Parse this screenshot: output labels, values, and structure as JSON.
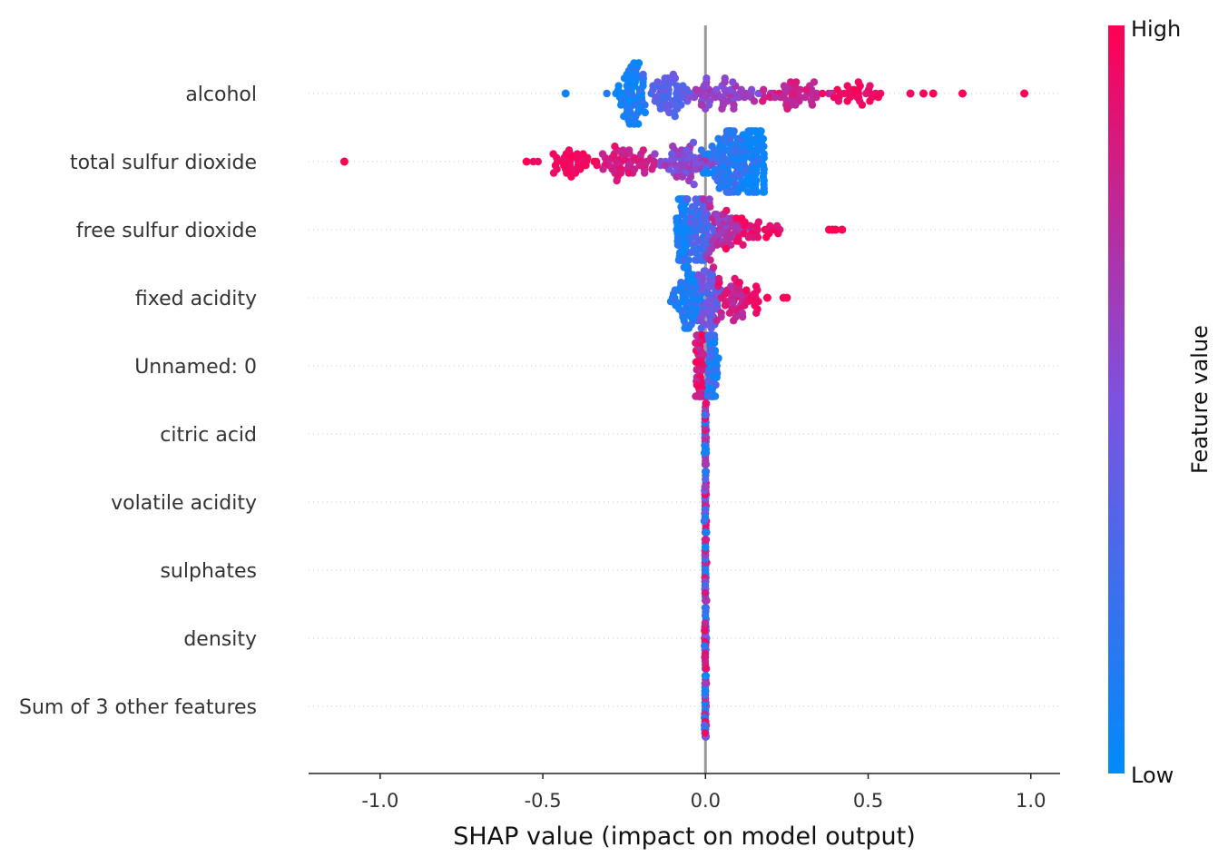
{
  "chart_data": {
    "type": "scatter",
    "subtype": "shap-beeswarm-summary",
    "xlabel": "SHAP value (impact on model output)",
    "xlim": [
      -1.22,
      1.09
    ],
    "x_ticks": [
      -1.0,
      -0.5,
      0.0,
      0.5,
      1.0
    ],
    "x_tick_labels": [
      "-1.0",
      "-0.5",
      "0.0",
      "0.5",
      "1.0"
    ],
    "colorbar": {
      "label": "Feature value",
      "high_label": "High",
      "low_label": "Low",
      "low_color": "#008bfb",
      "high_color": "#ff0052"
    },
    "features": [
      {
        "name": "alcohol",
        "min": -0.31,
        "max": 0.98,
        "spread": 0.17,
        "outliers": [
          {
            "x": -0.43,
            "v": 0.05
          },
          {
            "x": 0.63,
            "v": 0.95
          },
          {
            "x": 0.67,
            "v": 0.97
          },
          {
            "x": 0.7,
            "v": 0.98
          },
          {
            "x": 0.79,
            "v": 1.0
          },
          {
            "x": 0.98,
            "v": 1.0
          }
        ],
        "clusters": [
          {
            "center": -0.23,
            "sd": 0.04,
            "n": 70,
            "vmin": 0.0,
            "vmax": 0.2
          },
          {
            "center": -0.11,
            "sd": 0.05,
            "n": 55,
            "vmin": 0.25,
            "vmax": 0.45
          },
          {
            "center": 0.06,
            "sd": 0.07,
            "n": 55,
            "vmin": 0.5,
            "vmax": 0.7
          },
          {
            "center": 0.26,
            "sd": 0.09,
            "n": 50,
            "vmin": 0.7,
            "vmax": 0.88
          },
          {
            "center": 0.48,
            "sd": 0.06,
            "n": 30,
            "vmin": 0.88,
            "vmax": 1.0
          }
        ]
      },
      {
        "name": "total sulfur dioxide",
        "min": -0.55,
        "max": 0.18,
        "spread": 0.26,
        "outliers": [
          {
            "x": -1.11,
            "v": 1.0
          },
          {
            "x": -0.55,
            "v": 1.0
          }
        ],
        "clusters": [
          {
            "center": -0.42,
            "sd": 0.06,
            "n": 40,
            "vmin": 0.9,
            "vmax": 1.0
          },
          {
            "center": -0.24,
            "sd": 0.07,
            "n": 55,
            "vmin": 0.75,
            "vmax": 0.92
          },
          {
            "center": -0.06,
            "sd": 0.06,
            "n": 60,
            "vmin": 0.4,
            "vmax": 0.7
          },
          {
            "center": 0.07,
            "sd": 0.06,
            "n": 120,
            "vmin": 0.0,
            "vmax": 0.3
          },
          {
            "center": 0.15,
            "sd": 0.03,
            "n": 70,
            "vmin": 0.0,
            "vmax": 0.1
          }
        ]
      },
      {
        "name": "free sulfur dioxide",
        "min": -0.1,
        "max": 0.29,
        "spread": 0.21,
        "outliers": [
          {
            "x": 0.38,
            "v": 1.0
          },
          {
            "x": 0.39,
            "v": 1.0
          },
          {
            "x": 0.4,
            "v": 1.0
          },
          {
            "x": 0.42,
            "v": 1.0
          }
        ],
        "clusters": [
          {
            "center": -0.07,
            "sd": 0.015,
            "n": 70,
            "vmin": 0.0,
            "vmax": 0.15
          },
          {
            "center": -0.02,
            "sd": 0.03,
            "n": 70,
            "vmin": 0.15,
            "vmax": 0.45
          },
          {
            "center": 0.06,
            "sd": 0.04,
            "n": 50,
            "vmin": 0.55,
            "vmax": 0.8
          },
          {
            "center": 0.15,
            "sd": 0.05,
            "n": 30,
            "vmin": 0.85,
            "vmax": 1.0
          }
        ]
      },
      {
        "name": "fixed acidity",
        "min": -0.13,
        "max": 0.25,
        "spread": 0.18,
        "outliers": [
          {
            "x": 0.19,
            "v": 1.0
          },
          {
            "x": 0.24,
            "v": 1.0
          },
          {
            "x": 0.25,
            "v": 1.0
          }
        ],
        "clusters": [
          {
            "center": -0.05,
            "sd": 0.035,
            "n": 70,
            "vmin": 0.0,
            "vmax": 0.25
          },
          {
            "center": 0.01,
            "sd": 0.025,
            "n": 50,
            "vmin": 0.3,
            "vmax": 0.55
          },
          {
            "center": 0.08,
            "sd": 0.04,
            "n": 45,
            "vmin": 0.7,
            "vmax": 0.95
          },
          {
            "center": 0.15,
            "sd": 0.02,
            "n": 12,
            "vmin": 0.9,
            "vmax": 1.0
          }
        ]
      },
      {
        "name": "Unnamed: 0",
        "min": -0.04,
        "max": 0.04,
        "spread": 0.18,
        "outliers": [],
        "clusters": [
          {
            "center": -0.015,
            "sd": 0.012,
            "n": 60,
            "vmin": 0.7,
            "vmax": 1.0
          },
          {
            "center": 0.022,
            "sd": 0.012,
            "n": 55,
            "vmin": 0.0,
            "vmax": 0.35
          }
        ]
      },
      {
        "name": "citric acid",
        "min": -0.01,
        "max": 0.01,
        "spread": 0.13,
        "outliers": [],
        "clusters": [
          {
            "center": 0.0,
            "sd": 0.002,
            "n": 40,
            "vmin": 0.0,
            "vmax": 1.0
          }
        ]
      },
      {
        "name": "volatile acidity",
        "min": -0.01,
        "max": 0.01,
        "spread": 0.13,
        "outliers": [],
        "clusters": [
          {
            "center": 0.0,
            "sd": 0.002,
            "n": 40,
            "vmin": 0.0,
            "vmax": 1.0
          }
        ]
      },
      {
        "name": "sulphates",
        "min": -0.01,
        "max": 0.01,
        "spread": 0.13,
        "outliers": [],
        "clusters": [
          {
            "center": 0.0,
            "sd": 0.002,
            "n": 40,
            "vmin": 0.0,
            "vmax": 1.0
          }
        ]
      },
      {
        "name": "density",
        "min": -0.01,
        "max": 0.01,
        "spread": 0.13,
        "outliers": [],
        "clusters": [
          {
            "center": 0.0,
            "sd": 0.002,
            "n": 40,
            "vmin": 0.0,
            "vmax": 1.0
          }
        ]
      },
      {
        "name": "Sum of 3 other features",
        "min": -0.01,
        "max": 0.01,
        "spread": 0.13,
        "outliers": [],
        "clusters": [
          {
            "center": 0.0,
            "sd": 0.002,
            "n": 40,
            "vmin": 0.0,
            "vmax": 1.0
          }
        ]
      }
    ],
    "zero_line": true,
    "grid": "dotted row guides"
  }
}
